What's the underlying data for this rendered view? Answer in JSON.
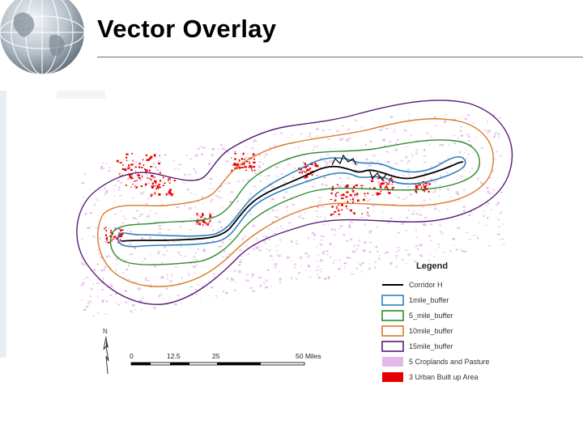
{
  "slide": {
    "title": "Vector Overlay"
  },
  "map": {
    "legend": {
      "title": "Legend",
      "items": [
        {
          "label": "Corridor H",
          "kind": "line",
          "color": "#000000"
        },
        {
          "label": "1mile_buffer",
          "kind": "box",
          "color": "#2f7fbf"
        },
        {
          "label": "5_mile_buffer",
          "kind": "box",
          "color": "#2e8b2e"
        },
        {
          "label": "10mile_buffer",
          "kind": "box",
          "color": "#d87a2a"
        },
        {
          "label": "15mile_buffer",
          "kind": "box",
          "color": "#5a1a78"
        },
        {
          "label": "5 Croplands and Pasture",
          "kind": "fill",
          "color": "#e3b8e8"
        },
        {
          "label": "3 Urban Built up Area",
          "kind": "fill",
          "color": "#e80000"
        }
      ]
    },
    "scale_bar": {
      "ticks": [
        "0",
        "12.5",
        "25",
        "50 Miles"
      ]
    },
    "north_arrow": {
      "label": "N"
    }
  }
}
